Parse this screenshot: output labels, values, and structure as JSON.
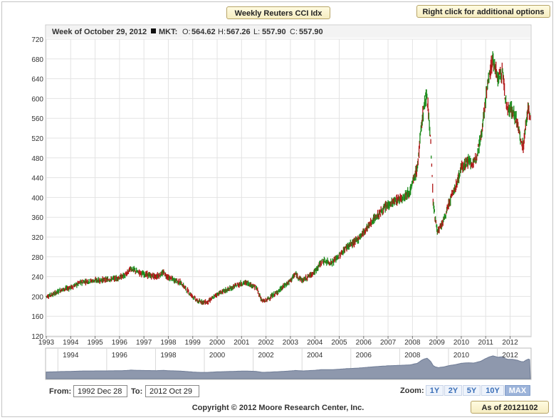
{
  "title_button": "Weekly Reuters CCI Idx",
  "right_click_button": "Right click for additional options",
  "info_bar": {
    "text": "Week of October 29, 2012",
    "series": "MKT:",
    "open_label": "O:",
    "open": "564.62",
    "high_label": "H:",
    "high": "567.26",
    "low_label": "L:",
    "low": "557.90",
    "close_label": "C:",
    "close": "557.90"
  },
  "chart_data": {
    "type": "candlestick",
    "y_ticks": [
      120,
      160,
      200,
      240,
      280,
      320,
      360,
      400,
      440,
      480,
      520,
      560,
      600,
      640,
      680,
      720
    ],
    "ylim": [
      120,
      720
    ],
    "x_ticks": [
      "1993",
      "1994",
      "1995",
      "1996",
      "1997",
      "1998",
      "1999",
      "2000",
      "2001",
      "2002",
      "2003",
      "2004",
      "2005",
      "2006",
      "2007",
      "2008",
      "2009",
      "2010",
      "2011",
      "2012"
    ],
    "xlim": [
      1993.0,
      2012.83
    ],
    "grid": true,
    "up_color": "#1a8a1a",
    "down_color": "#b01515",
    "trend": [
      [
        1993.0,
        200
      ],
      [
        1993.3,
        205
      ],
      [
        1993.6,
        213
      ],
      [
        1994.0,
        218
      ],
      [
        1994.5,
        230
      ],
      [
        1995.0,
        232
      ],
      [
        1995.5,
        234
      ],
      [
        1996.0,
        238
      ],
      [
        1996.3,
        245
      ],
      [
        1996.45,
        257
      ],
      [
        1996.7,
        250
      ],
      [
        1997.0,
        245
      ],
      [
        1997.5,
        240
      ],
      [
        1997.8,
        248
      ],
      [
        1998.0,
        238
      ],
      [
        1998.5,
        228
      ],
      [
        1998.9,
        205
      ],
      [
        1999.2,
        190
      ],
      [
        1999.6,
        188
      ],
      [
        2000.0,
        205
      ],
      [
        2000.5,
        215
      ],
      [
        2000.9,
        225
      ],
      [
        2001.2,
        228
      ],
      [
        2001.6,
        218
      ],
      [
        2001.85,
        190
      ],
      [
        2002.0,
        192
      ],
      [
        2002.5,
        210
      ],
      [
        2003.0,
        232
      ],
      [
        2003.2,
        245
      ],
      [
        2003.5,
        232
      ],
      [
        2004.0,
        250
      ],
      [
        2004.3,
        272
      ],
      [
        2004.7,
        268
      ],
      [
        2005.0,
        282
      ],
      [
        2005.3,
        300
      ],
      [
        2005.7,
        312
      ],
      [
        2006.0,
        330
      ],
      [
        2006.4,
        355
      ],
      [
        2006.8,
        375
      ],
      [
        2007.0,
        385
      ],
      [
        2007.5,
        398
      ],
      [
        2007.9,
        412
      ],
      [
        2008.2,
        460
      ],
      [
        2008.4,
        560
      ],
      [
        2008.5,
        590
      ],
      [
        2008.6,
        610
      ],
      [
        2008.75,
        510
      ],
      [
        2008.85,
        390
      ],
      [
        2008.95,
        350
      ],
      [
        2009.05,
        330
      ],
      [
        2009.3,
        355
      ],
      [
        2009.5,
        390
      ],
      [
        2009.8,
        425
      ],
      [
        2010.0,
        460
      ],
      [
        2010.3,
        475
      ],
      [
        2010.5,
        465
      ],
      [
        2010.8,
        520
      ],
      [
        2011.0,
        600
      ],
      [
        2011.15,
        650
      ],
      [
        2011.3,
        680
      ],
      [
        2011.5,
        640
      ],
      [
        2011.7,
        655
      ],
      [
        2011.8,
        600
      ],
      [
        2011.9,
        580
      ],
      [
        2012.1,
        575
      ],
      [
        2012.3,
        550
      ],
      [
        2012.45,
        510
      ],
      [
        2012.55,
        505
      ],
      [
        2012.65,
        550
      ],
      [
        2012.75,
        585
      ],
      [
        2012.83,
        560
      ]
    ]
  },
  "navigator": {
    "labels": [
      "1994",
      "1996",
      "1998",
      "2000",
      "2002",
      "2004",
      "2006",
      "2008",
      "2010",
      "2012"
    ]
  },
  "range": {
    "from_label": "From:",
    "from_value": "1992 Dec 28",
    "to_label": "To:",
    "to_value": "2012 Oct 29"
  },
  "zoom": {
    "label": "Zoom:",
    "options": [
      "1Y",
      "2Y",
      "5Y",
      "10Y",
      "MAX"
    ],
    "active": "MAX"
  },
  "copyright": "Copyright © 2012 Moore Research Center, Inc.",
  "as_of": "As of 20121102"
}
